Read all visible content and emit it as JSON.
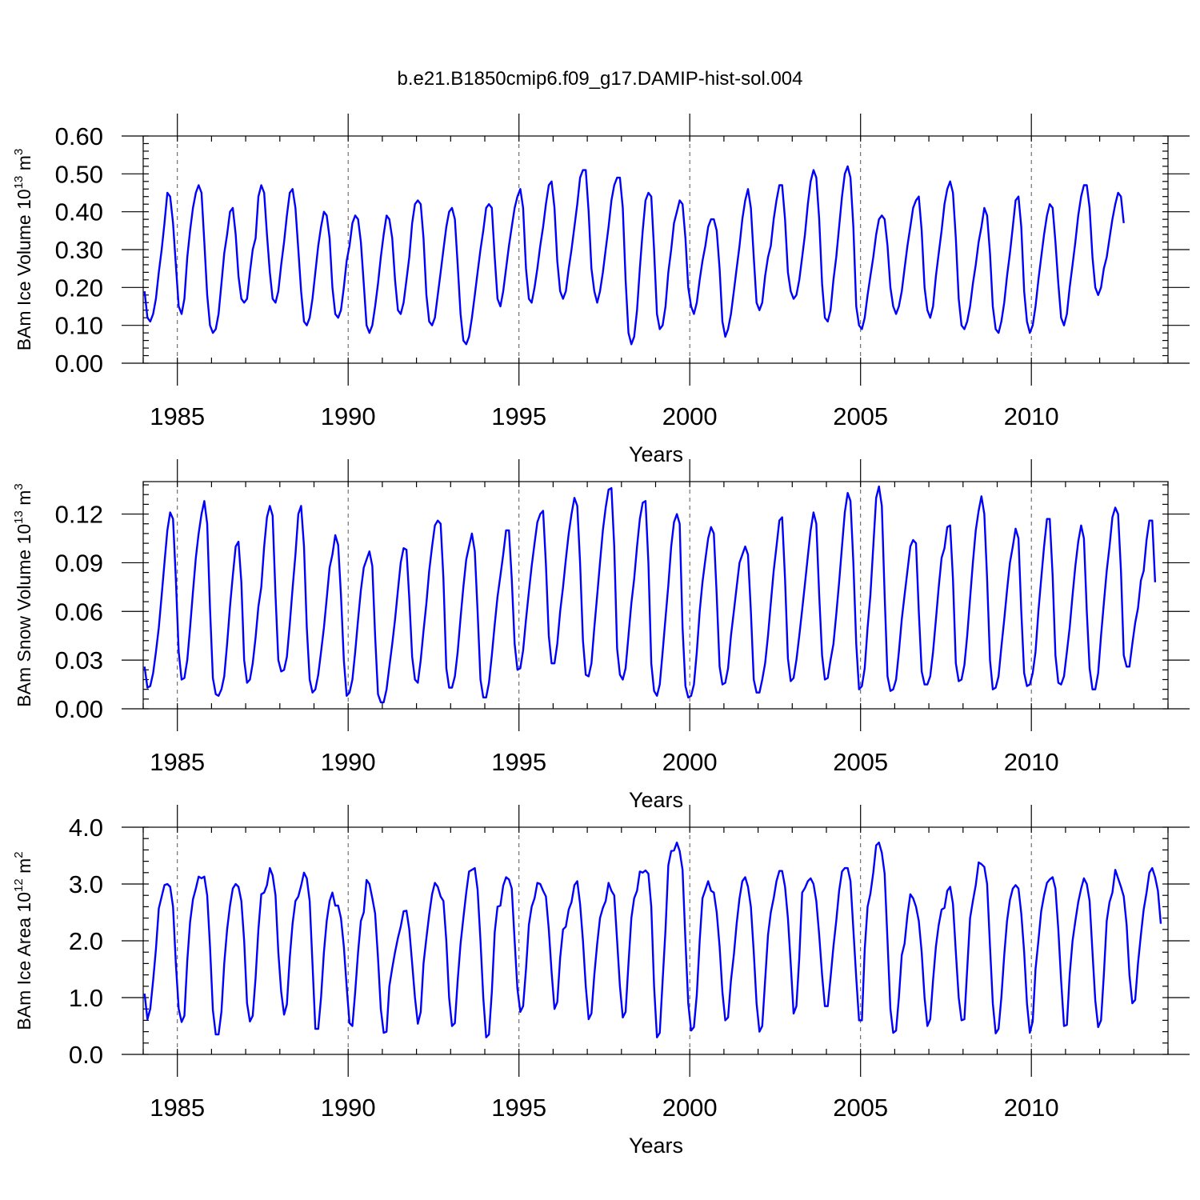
{
  "title": "b.e21.B1850cmip6.f09_g17.DAMIP-hist-sol.004",
  "colors": {
    "series": "#0000ff",
    "axis": "#000000",
    "refline": "#555555"
  },
  "chart_data": [
    {
      "type": "line",
      "ylabel": {
        "base": "BAm Ice Volume 10",
        "exp": "13",
        "unit": " m",
        "unit_exp": "3"
      },
      "xlabel": "Years",
      "xlim": [
        1984,
        2014
      ],
      "xticks": [
        1985,
        1990,
        1995,
        2000,
        2005,
        2010
      ],
      "xtick_labels": [
        "1985",
        "1990",
        "1995",
        "2000",
        "2005",
        "2010"
      ],
      "ylim": [
        0,
        0.6
      ],
      "yticks": [
        0,
        0.1,
        0.2,
        0.3,
        0.4,
        0.5,
        0.6
      ],
      "ytick_labels": [
        "0.00",
        "0.10",
        "0.20",
        "0.30",
        "0.40",
        "0.50",
        "0.60"
      ],
      "minor_ystep": 0.02,
      "x_start": 1984.04,
      "x_step": 0.08333,
      "values": [
        0.19,
        0.12,
        0.11,
        0.13,
        0.17,
        0.24,
        0.3,
        0.37,
        0.45,
        0.44,
        0.37,
        0.26,
        0.15,
        0.13,
        0.17,
        0.28,
        0.35,
        0.41,
        0.45,
        0.47,
        0.45,
        0.32,
        0.18,
        0.1,
        0.08,
        0.09,
        0.13,
        0.21,
        0.29,
        0.34,
        0.4,
        0.41,
        0.34,
        0.23,
        0.17,
        0.16,
        0.17,
        0.24,
        0.3,
        0.33,
        0.44,
        0.47,
        0.45,
        0.34,
        0.24,
        0.17,
        0.16,
        0.19,
        0.26,
        0.32,
        0.39,
        0.45,
        0.46,
        0.41,
        0.3,
        0.19,
        0.11,
        0.1,
        0.12,
        0.17,
        0.24,
        0.31,
        0.36,
        0.4,
        0.39,
        0.33,
        0.2,
        0.13,
        0.12,
        0.14,
        0.2,
        0.27,
        0.31,
        0.37,
        0.39,
        0.38,
        0.32,
        0.21,
        0.1,
        0.08,
        0.1,
        0.15,
        0.21,
        0.28,
        0.34,
        0.39,
        0.38,
        0.33,
        0.22,
        0.14,
        0.13,
        0.16,
        0.22,
        0.28,
        0.37,
        0.42,
        0.43,
        0.42,
        0.33,
        0.18,
        0.11,
        0.1,
        0.12,
        0.18,
        0.24,
        0.3,
        0.36,
        0.4,
        0.41,
        0.38,
        0.26,
        0.13,
        0.06,
        0.05,
        0.07,
        0.12,
        0.18,
        0.24,
        0.3,
        0.35,
        0.41,
        0.42,
        0.41,
        0.28,
        0.17,
        0.15,
        0.19,
        0.25,
        0.31,
        0.36,
        0.41,
        0.44,
        0.46,
        0.41,
        0.25,
        0.17,
        0.16,
        0.2,
        0.25,
        0.31,
        0.36,
        0.42,
        0.47,
        0.48,
        0.41,
        0.27,
        0.19,
        0.17,
        0.19,
        0.25,
        0.3,
        0.36,
        0.42,
        0.49,
        0.51,
        0.51,
        0.4,
        0.25,
        0.19,
        0.16,
        0.19,
        0.24,
        0.3,
        0.36,
        0.43,
        0.47,
        0.49,
        0.49,
        0.41,
        0.22,
        0.08,
        0.05,
        0.07,
        0.14,
        0.25,
        0.35,
        0.43,
        0.45,
        0.44,
        0.3,
        0.13,
        0.09,
        0.1,
        0.15,
        0.24,
        0.3,
        0.37,
        0.4,
        0.43,
        0.42,
        0.33,
        0.2,
        0.15,
        0.13,
        0.16,
        0.22,
        0.27,
        0.31,
        0.36,
        0.38,
        0.38,
        0.35,
        0.25,
        0.11,
        0.07,
        0.09,
        0.13,
        0.19,
        0.25,
        0.31,
        0.38,
        0.43,
        0.46,
        0.41,
        0.28,
        0.16,
        0.14,
        0.16,
        0.23,
        0.28,
        0.31,
        0.38,
        0.43,
        0.47,
        0.47,
        0.38,
        0.24,
        0.19,
        0.17,
        0.18,
        0.22,
        0.28,
        0.34,
        0.42,
        0.48,
        0.51,
        0.49,
        0.38,
        0.21,
        0.12,
        0.11,
        0.14,
        0.22,
        0.28,
        0.36,
        0.44,
        0.5,
        0.52,
        0.49,
        0.36,
        0.15,
        0.1,
        0.09,
        0.12,
        0.18,
        0.23,
        0.28,
        0.34,
        0.38,
        0.39,
        0.38,
        0.31,
        0.2,
        0.15,
        0.13,
        0.15,
        0.19,
        0.25,
        0.31,
        0.36,
        0.41,
        0.43,
        0.44,
        0.35,
        0.2,
        0.14,
        0.12,
        0.15,
        0.23,
        0.29,
        0.35,
        0.42,
        0.46,
        0.48,
        0.45,
        0.33,
        0.17,
        0.1,
        0.09,
        0.11,
        0.15,
        0.21,
        0.26,
        0.32,
        0.36,
        0.41,
        0.39,
        0.29,
        0.15,
        0.09,
        0.08,
        0.11,
        0.16,
        0.23,
        0.29,
        0.36,
        0.43,
        0.44,
        0.36,
        0.19,
        0.11,
        0.08,
        0.1,
        0.15,
        0.22,
        0.28,
        0.34,
        0.39,
        0.42,
        0.41,
        0.32,
        0.21,
        0.12,
        0.1,
        0.13,
        0.2,
        0.26,
        0.32,
        0.39,
        0.44,
        0.47,
        0.47,
        0.41,
        0.28,
        0.2,
        0.18,
        0.2,
        0.25,
        0.28,
        0.33,
        0.38,
        0.42,
        0.45,
        0.44,
        0.37
      ]
    },
    {
      "type": "line",
      "ylabel": {
        "base": "BAm Snow Volume 10",
        "exp": "13",
        "unit": " m",
        "unit_exp": "3"
      },
      "xlabel": "Years",
      "xlim": [
        1984,
        2014
      ],
      "xticks": [
        1985,
        1990,
        1995,
        2000,
        2005,
        2010
      ],
      "xtick_labels": [
        "1985",
        "1990",
        "1995",
        "2000",
        "2005",
        "2010"
      ],
      "ylim": [
        0,
        0.14
      ],
      "yticks": [
        0,
        0.03,
        0.06,
        0.09,
        0.12
      ],
      "ytick_labels": [
        "0.00",
        "0.03",
        "0.06",
        "0.09",
        "0.12"
      ],
      "minor_ystep": 0.006,
      "x_start": 1984.04,
      "x_step": 0.08333,
      "values": [
        0.026,
        0.013,
        0.014,
        0.022,
        0.035,
        0.05,
        0.07,
        0.09,
        0.11,
        0.121,
        0.117,
        0.08,
        0.035,
        0.018,
        0.019,
        0.03,
        0.05,
        0.072,
        0.093,
        0.108,
        0.12,
        0.128,
        0.114,
        0.062,
        0.019,
        0.009,
        0.008,
        0.012,
        0.02,
        0.04,
        0.063,
        0.082,
        0.1,
        0.103,
        0.078,
        0.03,
        0.016,
        0.018,
        0.028,
        0.044,
        0.063,
        0.075,
        0.1,
        0.118,
        0.125,
        0.119,
        0.07,
        0.03,
        0.023,
        0.024,
        0.032,
        0.052,
        0.074,
        0.095,
        0.12,
        0.125,
        0.1,
        0.05,
        0.018,
        0.01,
        0.012,
        0.021,
        0.035,
        0.05,
        0.068,
        0.087,
        0.095,
        0.107,
        0.101,
        0.07,
        0.03,
        0.008,
        0.01,
        0.018,
        0.035,
        0.055,
        0.073,
        0.087,
        0.092,
        0.097,
        0.088,
        0.045,
        0.009,
        0.004,
        0.004,
        0.012,
        0.026,
        0.04,
        0.055,
        0.073,
        0.09,
        0.099,
        0.098,
        0.068,
        0.032,
        0.018,
        0.016,
        0.03,
        0.048,
        0.065,
        0.085,
        0.1,
        0.113,
        0.116,
        0.114,
        0.08,
        0.025,
        0.013,
        0.013,
        0.02,
        0.035,
        0.056,
        0.075,
        0.092,
        0.1,
        0.108,
        0.097,
        0.06,
        0.018,
        0.007,
        0.007,
        0.016,
        0.033,
        0.052,
        0.069,
        0.082,
        0.095,
        0.11,
        0.11,
        0.08,
        0.04,
        0.024,
        0.025,
        0.036,
        0.055,
        0.072,
        0.088,
        0.102,
        0.115,
        0.12,
        0.122,
        0.089,
        0.045,
        0.028,
        0.028,
        0.04,
        0.06,
        0.075,
        0.092,
        0.108,
        0.12,
        0.13,
        0.125,
        0.09,
        0.042,
        0.021,
        0.02,
        0.028,
        0.05,
        0.07,
        0.09,
        0.11,
        0.124,
        0.135,
        0.136,
        0.1,
        0.037,
        0.021,
        0.018,
        0.025,
        0.045,
        0.065,
        0.08,
        0.1,
        0.117,
        0.127,
        0.128,
        0.09,
        0.028,
        0.011,
        0.008,
        0.015,
        0.035,
        0.056,
        0.076,
        0.1,
        0.115,
        0.12,
        0.114,
        0.05,
        0.014,
        0.007,
        0.008,
        0.015,
        0.035,
        0.06,
        0.078,
        0.092,
        0.105,
        0.112,
        0.108,
        0.07,
        0.026,
        0.015,
        0.016,
        0.025,
        0.045,
        0.06,
        0.075,
        0.09,
        0.095,
        0.1,
        0.095,
        0.06,
        0.018,
        0.01,
        0.01,
        0.018,
        0.028,
        0.045,
        0.065,
        0.085,
        0.1,
        0.116,
        0.118,
        0.08,
        0.031,
        0.017,
        0.019,
        0.03,
        0.045,
        0.061,
        0.077,
        0.094,
        0.11,
        0.121,
        0.114,
        0.07,
        0.033,
        0.018,
        0.019,
        0.03,
        0.04,
        0.058,
        0.078,
        0.1,
        0.121,
        0.133,
        0.128,
        0.09,
        0.04,
        0.012,
        0.014,
        0.025,
        0.05,
        0.07,
        0.1,
        0.13,
        0.137,
        0.125,
        0.07,
        0.02,
        0.011,
        0.012,
        0.018,
        0.035,
        0.055,
        0.07,
        0.085,
        0.1,
        0.104,
        0.102,
        0.06,
        0.023,
        0.015,
        0.015,
        0.02,
        0.035,
        0.055,
        0.075,
        0.093,
        0.099,
        0.112,
        0.113,
        0.08,
        0.028,
        0.017,
        0.018,
        0.027,
        0.045,
        0.068,
        0.09,
        0.11,
        0.122,
        0.131,
        0.12,
        0.08,
        0.03,
        0.012,
        0.013,
        0.02,
        0.038,
        0.055,
        0.073,
        0.09,
        0.1,
        0.111,
        0.105,
        0.06,
        0.022,
        0.014,
        0.015,
        0.022,
        0.035,
        0.06,
        0.08,
        0.1,
        0.117,
        0.117,
        0.082,
        0.033,
        0.016,
        0.015,
        0.02,
        0.035,
        0.05,
        0.07,
        0.088,
        0.103,
        0.113,
        0.105,
        0.06,
        0.025,
        0.012,
        0.012,
        0.022,
        0.045,
        0.065,
        0.085,
        0.1,
        0.118,
        0.124,
        0.12,
        0.085,
        0.033,
        0.026,
        0.026,
        0.04,
        0.053,
        0.062,
        0.079,
        0.085,
        0.104,
        0.116,
        0.116,
        0.078
      ]
    },
    {
      "type": "line",
      "ylabel": {
        "base": "BAm Ice Area 10",
        "exp": "12",
        "unit": " m",
        "unit_exp": "2"
      },
      "xlabel": "Years",
      "xlim": [
        1984,
        2014
      ],
      "xticks": [
        1985,
        1990,
        1995,
        2000,
        2005,
        2010
      ],
      "xtick_labels": [
        "1985",
        "1990",
        "1995",
        "2000",
        "2005",
        "2010"
      ],
      "ylim": [
        0,
        4
      ],
      "yticks": [
        0,
        1,
        2,
        3,
        4
      ],
      "ytick_labels": [
        "0.0",
        "1.0",
        "2.0",
        "3.0",
        "4.0"
      ],
      "minor_ystep": 0.2,
      "x_start": 1984.04,
      "x_step": 0.08333,
      "values": [
        1.07,
        0.62,
        0.8,
        1.3,
        1.85,
        2.57,
        2.78,
        2.98,
        3.0,
        2.95,
        2.6,
        1.6,
        0.8,
        0.57,
        0.68,
        1.65,
        2.33,
        2.73,
        2.92,
        3.13,
        3.1,
        3.13,
        2.8,
        1.9,
        0.78,
        0.35,
        0.35,
        0.75,
        1.6,
        2.2,
        2.62,
        2.92,
        3.0,
        2.95,
        2.7,
        2.0,
        0.9,
        0.58,
        0.68,
        1.35,
        2.2,
        2.82,
        2.85,
        2.98,
        3.28,
        3.15,
        2.8,
        1.8,
        1.1,
        0.7,
        0.88,
        1.7,
        2.3,
        2.7,
        2.78,
        2.97,
        3.2,
        3.1,
        2.7,
        1.6,
        0.45,
        0.45,
        1.0,
        1.8,
        2.35,
        2.7,
        2.85,
        2.62,
        2.62,
        2.4,
        1.9,
        1.2,
        0.55,
        0.5,
        1.1,
        1.8,
        2.35,
        2.5,
        3.07,
        3.0,
        2.75,
        2.48,
        1.7,
        0.8,
        0.38,
        0.4,
        1.2,
        1.52,
        1.8,
        2.05,
        2.25,
        2.52,
        2.53,
        2.2,
        1.6,
        1.0,
        0.54,
        0.75,
        1.6,
        2.05,
        2.46,
        2.82,
        3.02,
        2.95,
        2.78,
        2.7,
        2.0,
        1.0,
        0.5,
        0.55,
        1.3,
        1.95,
        2.4,
        2.85,
        3.22,
        3.25,
        3.28,
        2.9,
        2.0,
        1.0,
        0.3,
        0.35,
        1.1,
        2.15,
        2.6,
        2.62,
        2.97,
        3.12,
        3.08,
        2.92,
        2.0,
        1.15,
        0.75,
        0.85,
        1.5,
        2.28,
        2.6,
        2.75,
        3.02,
        3.0,
        2.88,
        2.78,
        2.2,
        1.45,
        0.8,
        0.92,
        1.7,
        2.2,
        2.25,
        2.55,
        2.68,
        2.98,
        3.05,
        2.65,
        2.0,
        1.2,
        0.62,
        0.72,
        1.4,
        1.95,
        2.4,
        2.58,
        2.7,
        3.02,
        2.88,
        2.8,
        2.0,
        1.2,
        0.65,
        0.75,
        1.6,
        2.4,
        2.75,
        2.88,
        3.22,
        3.2,
        3.24,
        3.18,
        2.6,
        1.2,
        0.3,
        0.38,
        1.3,
        2.2,
        3.33,
        3.58,
        3.59,
        3.73,
        3.58,
        3.25,
        2.0,
        0.9,
        0.42,
        0.48,
        1.05,
        2.0,
        2.75,
        2.9,
        3.05,
        2.88,
        2.85,
        2.5,
        1.9,
        1.1,
        0.6,
        0.65,
        1.3,
        1.75,
        2.3,
        2.75,
        3.05,
        3.12,
        2.95,
        2.6,
        1.8,
        0.9,
        0.4,
        0.5,
        1.3,
        2.1,
        2.5,
        2.75,
        3.05,
        3.23,
        3.23,
        2.95,
        2.4,
        1.6,
        0.72,
        0.85,
        1.7,
        2.85,
        2.93,
        3.05,
        3.1,
        3.0,
        2.7,
        2.1,
        1.4,
        0.85,
        0.85,
        1.35,
        1.9,
        2.35,
        2.88,
        3.22,
        3.28,
        3.28,
        3.05,
        2.2,
        1.35,
        0.6,
        0.6,
        1.85,
        2.6,
        2.83,
        3.2,
        3.68,
        3.73,
        3.55,
        3.18,
        2.0,
        0.8,
        0.38,
        0.42,
        1.0,
        1.75,
        1.95,
        2.45,
        2.82,
        2.75,
        2.6,
        2.35,
        1.8,
        1.0,
        0.5,
        0.62,
        1.3,
        1.9,
        2.28,
        2.55,
        2.58,
        2.88,
        2.95,
        2.65,
        1.8,
        1.0,
        0.6,
        0.62,
        1.5,
        2.4,
        2.7,
        2.98,
        3.38,
        3.35,
        3.3,
        3.0,
        1.9,
        0.9,
        0.37,
        0.45,
        1.0,
        1.75,
        2.35,
        2.72,
        2.92,
        2.98,
        2.92,
        2.48,
        1.8,
        0.9,
        0.38,
        0.58,
        1.5,
        2.0,
        2.52,
        2.8,
        3.02,
        3.08,
        3.12,
        2.92,
        2.2,
        1.3,
        0.5,
        0.52,
        1.4,
        2.0,
        2.35,
        2.68,
        2.92,
        3.1,
        3.0,
        2.7,
        1.8,
        0.95,
        0.48,
        0.6,
        1.4,
        2.35,
        2.68,
        2.85,
        3.25,
        3.1,
        2.95,
        2.78,
        2.28,
        1.4,
        0.9,
        0.96,
        1.6,
        2.1,
        2.55,
        2.85,
        3.2,
        3.28,
        3.12,
        2.88,
        2.3
      ]
    }
  ]
}
